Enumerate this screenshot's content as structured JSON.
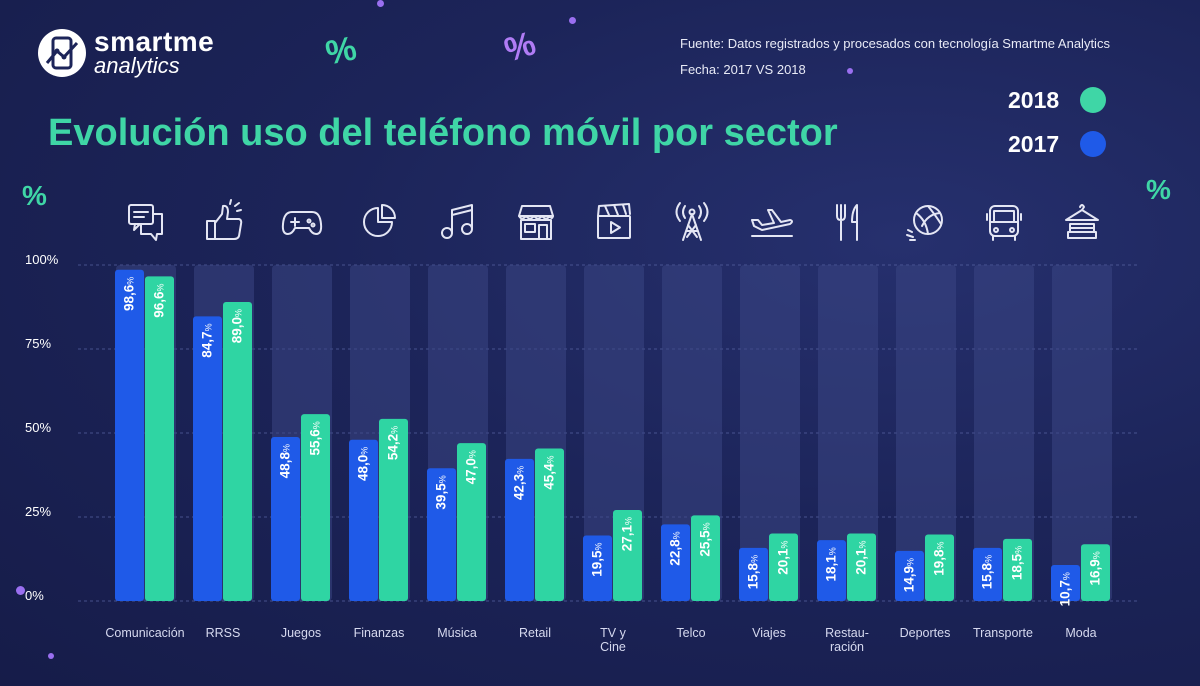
{
  "brand": {
    "name": "smartme",
    "sub": "analytics"
  },
  "source": {
    "line1": "Fuente: Datos registrados y procesados con tecnología Smartme Analytics",
    "line2": "Fecha:  2017 VS 2018"
  },
  "title": "Evolución uso del teléfono móvil por sector",
  "legend": [
    {
      "label": "2018",
      "color": "#3fd6a6"
    },
    {
      "label": "2017",
      "color": "#1f5ae8"
    }
  ],
  "decor": {
    "percent_symbol": "%"
  },
  "colors": {
    "bar_2017": "#1f5ae8",
    "bar_2018": "#2fd5a3",
    "track": "#3a4684",
    "accent": "#3fd6a6"
  },
  "chart_data": {
    "type": "bar",
    "title": "Evolución uso del teléfono móvil por sector",
    "categories": [
      "Comunicación",
      "RRSS",
      "Juegos",
      "Finanzas",
      "Música",
      "Retail",
      "TV y Cine",
      "Telco",
      "Viajes",
      "Restau-ración",
      "Deportes",
      "Transporte",
      "Moda"
    ],
    "category_lines": [
      [
        "Comunicación"
      ],
      [
        "RRSS"
      ],
      [
        "Juegos"
      ],
      [
        "Finanzas"
      ],
      [
        "Música"
      ],
      [
        "Retail"
      ],
      [
        "TV y",
        "Cine"
      ],
      [
        "Telco"
      ],
      [
        "Viajes"
      ],
      [
        "Restau-",
        "ración"
      ],
      [
        "Deportes"
      ],
      [
        "Transporte"
      ],
      [
        "Moda"
      ]
    ],
    "icons": [
      "chat-icon",
      "thumbs-up-icon",
      "gamepad-icon",
      "pie-chart-icon",
      "music-note-icon",
      "store-icon",
      "clapperboard-icon",
      "antenna-tower-icon",
      "airplane-icon",
      "cutlery-icon",
      "volleyball-icon",
      "bus-icon",
      "clothes-icon"
    ],
    "series": [
      {
        "name": "2017",
        "values": [
          98.6,
          84.7,
          48.8,
          48.0,
          39.5,
          42.3,
          19.5,
          22.8,
          15.8,
          18.1,
          14.9,
          15.8,
          10.7
        ],
        "labels": [
          "98,6",
          "84,7",
          "48,8",
          "48,0",
          "39,5",
          "42,3",
          "19,5",
          "22,8",
          "15,8",
          "18,1",
          "14,9",
          "15,8",
          "10,7"
        ]
      },
      {
        "name": "2018",
        "values": [
          96.6,
          89.0,
          55.6,
          54.2,
          47.0,
          45.4,
          27.1,
          25.5,
          20.1,
          20.1,
          19.8,
          18.5,
          16.9
        ],
        "labels": [
          "96,6",
          "89,0",
          "55,6",
          "54,2",
          "47,0",
          "45,4",
          "27,1",
          "25,5",
          "20,1",
          "20,1",
          "19,8",
          "18,5",
          "16,9"
        ]
      }
    ],
    "label_suffix": "%",
    "yticks": [
      "100%",
      "75%",
      "50%",
      "25%",
      "0%"
    ],
    "ylim": [
      0,
      100
    ]
  }
}
